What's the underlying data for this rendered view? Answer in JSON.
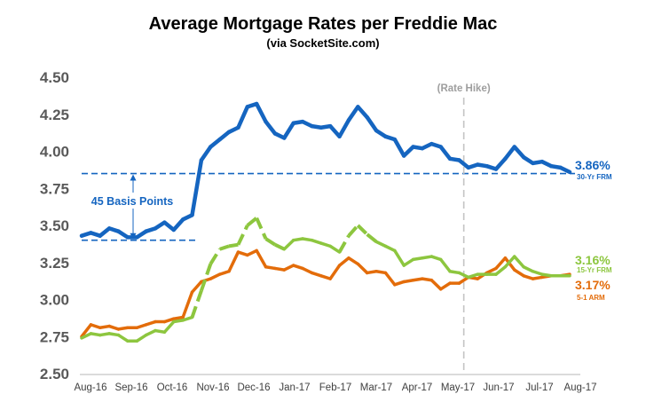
{
  "title": "Average Mortgage Rates per Freddie Mac",
  "subtitle": "(via SocketSite.com)",
  "chart_data": {
    "type": "line",
    "title": "Average Mortgage Rates per Freddie Mac",
    "subtitle": "(via SocketSite.com)",
    "ylim": [
      2.5,
      4.5
    ],
    "yticks": [
      "2.50",
      "2.75",
      "3.00",
      "3.25",
      "3.50",
      "3.75",
      "4.00",
      "4.25",
      "4.50"
    ],
    "x_tick_labels": [
      "Aug-16",
      "Sep-16",
      "Oct-16",
      "Nov-16",
      "Dec-16",
      "Jan-17",
      "Feb-17",
      "Mar-17",
      "Apr-17",
      "May-17",
      "Jun-17",
      "Jul-17",
      "Aug-17"
    ],
    "grid": false,
    "series": [
      {
        "key": "fixed30",
        "color": "#1565c0",
        "end_value_label": "3.86%",
        "end_name_label": "30-Yr FRM",
        "values": [
          3.43,
          3.45,
          3.43,
          3.48,
          3.46,
          3.42,
          3.42,
          3.46,
          3.48,
          3.52,
          3.47,
          3.54,
          3.57,
          3.94,
          4.03,
          4.08,
          4.13,
          4.16,
          4.3,
          4.32,
          4.2,
          4.12,
          4.09,
          4.19,
          4.2,
          4.17,
          4.16,
          4.17,
          4.1,
          4.21,
          4.3,
          4.23,
          4.14,
          4.1,
          4.08,
          3.97,
          4.03,
          4.02,
          4.05,
          4.03,
          3.95,
          3.94,
          3.89,
          3.91,
          3.9,
          3.88,
          3.95,
          4.03,
          3.96,
          3.92,
          3.93,
          3.9,
          3.89,
          3.86
        ]
      },
      {
        "key": "fixed15",
        "color": "#8dc63f",
        "end_value_label": "3.16%",
        "end_name_label": "15-Yr FRM",
        "dashed_segments": [
          [
            12,
            18
          ],
          [
            18,
            22
          ],
          [
            28,
            32
          ]
        ],
        "values": [
          2.74,
          2.77,
          2.76,
          2.77,
          2.76,
          2.72,
          2.72,
          2.76,
          2.79,
          2.78,
          2.85,
          2.86,
          2.88,
          3.06,
          3.24,
          3.34,
          3.36,
          3.37,
          3.5,
          3.55,
          3.41,
          3.37,
          3.34,
          3.4,
          3.41,
          3.4,
          3.38,
          3.36,
          3.32,
          3.43,
          3.5,
          3.44,
          3.39,
          3.36,
          3.33,
          3.23,
          3.27,
          3.28,
          3.29,
          3.27,
          3.19,
          3.18,
          3.15,
          3.17,
          3.17,
          3.17,
          3.22,
          3.29,
          3.22,
          3.19,
          3.17,
          3.16,
          3.16,
          3.16
        ]
      },
      {
        "key": "arm51",
        "color": "#e36c0a",
        "end_value_label": "3.17%",
        "end_name_label": "5-1 ARM",
        "values": [
          2.75,
          2.83,
          2.81,
          2.82,
          2.8,
          2.81,
          2.81,
          2.83,
          2.85,
          2.85,
          2.87,
          2.88,
          3.05,
          3.12,
          3.14,
          3.17,
          3.19,
          3.32,
          3.3,
          3.33,
          3.22,
          3.21,
          3.2,
          3.23,
          3.21,
          3.18,
          3.16,
          3.14,
          3.23,
          3.28,
          3.24,
          3.18,
          3.19,
          3.18,
          3.1,
          3.12,
          3.13,
          3.14,
          3.13,
          3.07,
          3.11,
          3.11,
          3.15,
          3.14,
          3.18,
          3.21,
          3.28,
          3.2,
          3.16,
          3.14,
          3.15,
          3.16,
          3.16,
          3.17
        ]
      }
    ],
    "annotations": {
      "basis_points_label": "45 Basis Points",
      "basis_low": 3.4,
      "basis_high": 3.85,
      "rate_hike_label": "(Rate Hike)",
      "rate_hike_index": 41.5
    }
  }
}
